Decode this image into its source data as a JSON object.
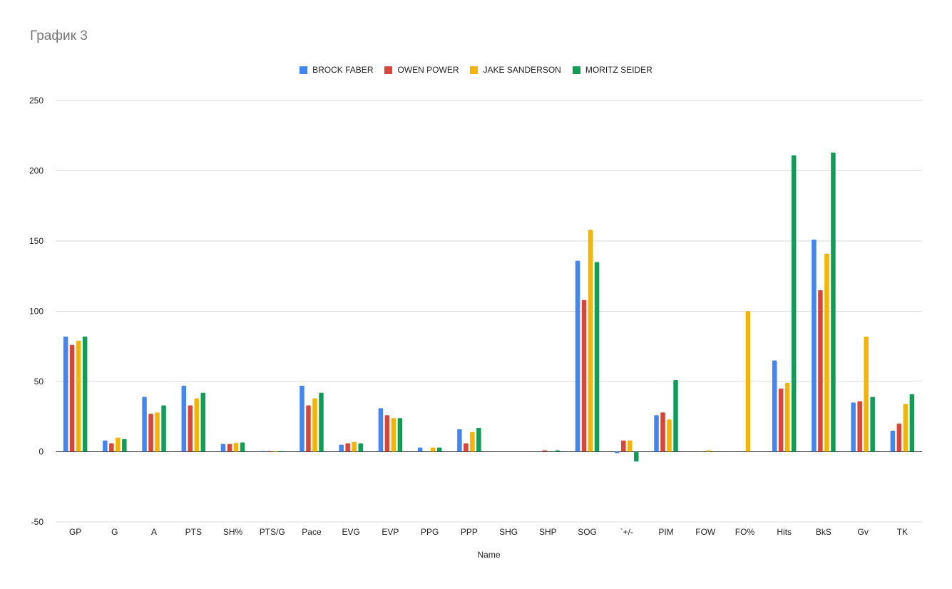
{
  "chart_data": {
    "type": "bar",
    "title": "График 3",
    "xlabel": "Name",
    "ylabel": "",
    "ylim": [
      -50,
      250
    ],
    "yticks": [
      -50,
      0,
      50,
      100,
      150,
      200,
      250
    ],
    "grid": true,
    "legend_position": "top",
    "categories": [
      "GP",
      "G",
      "A",
      "PTS",
      "SH%",
      "PTS/G",
      "Pace",
      "EVG",
      "EVP",
      "PPG",
      "PPP",
      "SHG",
      "SHP",
      "SOG",
      "`+/-",
      "PIM",
      "FOW",
      "FO%",
      "Hits",
      "BkS",
      "Gv",
      "TK"
    ],
    "series": [
      {
        "name": "BROCK FABER",
        "color": "#4285f4",
        "values": [
          82,
          8,
          39,
          47,
          5.5,
          0.57,
          47,
          5,
          31,
          3,
          16,
          0,
          0,
          136,
          -1,
          26,
          0,
          0,
          65,
          151,
          35,
          15
        ]
      },
      {
        "name": "OWEN POWER",
        "color": "#db4437",
        "values": [
          76,
          6,
          27,
          33,
          5.5,
          0.43,
          33,
          6,
          26,
          0,
          6,
          0,
          1,
          108,
          8,
          28,
          0,
          0,
          45,
          115,
          36,
          20
        ]
      },
      {
        "name": "JAKE SANDERSON",
        "color": "#f4b400",
        "values": [
          79,
          10,
          28,
          38,
          6.3,
          0.48,
          38,
          7,
          24,
          3,
          14,
          0,
          0,
          158,
          8,
          23,
          1,
          100,
          49,
          141,
          82,
          34
        ]
      },
      {
        "name": "MORITZ SEIDER",
        "color": "#0f9d58",
        "values": [
          82,
          9,
          33,
          42,
          6.6,
          0.51,
          42,
          6,
          24,
          3,
          17,
          0,
          1,
          135,
          -7,
          51,
          0,
          0,
          211,
          213,
          39,
          41
        ]
      }
    ]
  }
}
